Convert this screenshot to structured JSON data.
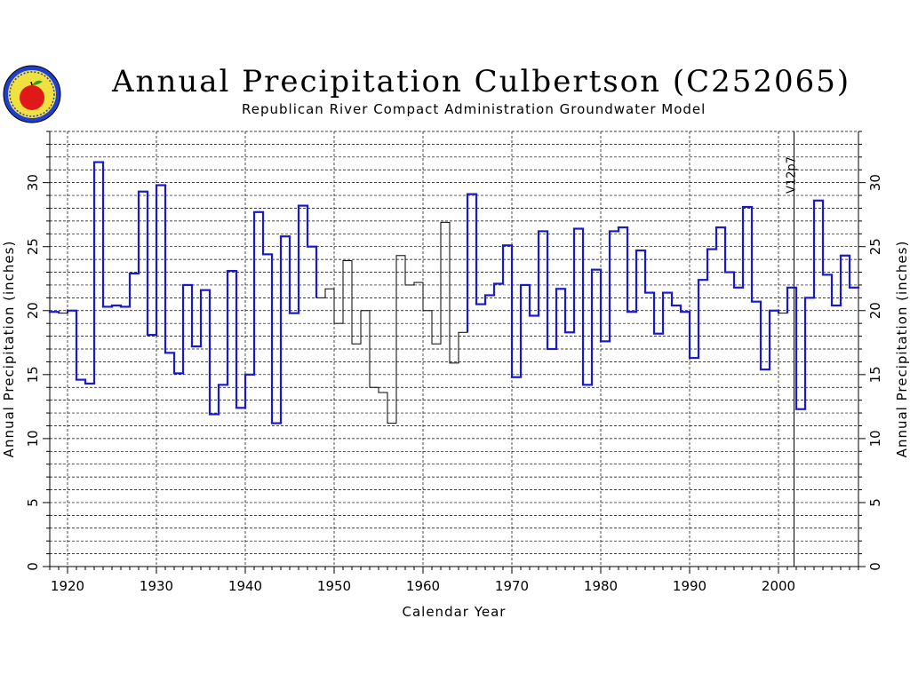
{
  "title": "Annual Precipitation Culbertson (C252065)",
  "subtitle": "Republican River Compact Administration Groundwater Model",
  "logo": {
    "icon": "state-seal-with-apple-icon"
  },
  "colors": {
    "series_before": "#1a1acc",
    "series_after": "#1a1acc",
    "thin_series": "#000000",
    "grid": "#000000"
  },
  "chart_data": {
    "type": "line",
    "step": true,
    "xlabel": "Calendar Year",
    "ylabel_left": "Annual Precipitation (inches)",
    "ylabel_right": "Annual Precipitation (inches)",
    "xlim": [
      1918,
      2009
    ],
    "ylim": [
      0,
      34
    ],
    "x_ticks": [
      1920,
      1930,
      1940,
      1950,
      1960,
      1970,
      1980,
      1990,
      2000
    ],
    "y_ticks": [
      0,
      5,
      10,
      15,
      20,
      25,
      30
    ],
    "grid": {
      "x_dashed_every": 10,
      "y_dashed_every": 1
    },
    "marker": {
      "x": 2001,
      "label": "V12p7"
    },
    "years": [
      1918,
      1919,
      1920,
      1921,
      1922,
      1923,
      1924,
      1925,
      1926,
      1927,
      1928,
      1929,
      1930,
      1931,
      1932,
      1933,
      1934,
      1935,
      1936,
      1937,
      1938,
      1939,
      1940,
      1941,
      1942,
      1943,
      1944,
      1945,
      1946,
      1947,
      1948,
      1949,
      1950,
      1951,
      1952,
      1953,
      1954,
      1955,
      1956,
      1957,
      1958,
      1959,
      1960,
      1961,
      1962,
      1963,
      1964,
      1965,
      1966,
      1967,
      1968,
      1969,
      1970,
      1971,
      1972,
      1973,
      1974,
      1975,
      1976,
      1977,
      1978,
      1979,
      1980,
      1981,
      1982,
      1983,
      1984,
      1985,
      1986,
      1987,
      1988,
      1989,
      1990,
      1991,
      1992,
      1993,
      1994,
      1995,
      1996,
      1997,
      1998,
      1999,
      2000,
      2001,
      2002,
      2003,
      2004,
      2005,
      2006,
      2007,
      2008
    ],
    "values": [
      19.9,
      19.8,
      20.0,
      14.6,
      14.3,
      31.6,
      20.3,
      20.4,
      20.3,
      22.9,
      29.3,
      18.1,
      29.8,
      16.7,
      15.1,
      22.0,
      17.2,
      21.6,
      11.9,
      14.2,
      23.1,
      12.4,
      15.0,
      27.7,
      24.4,
      11.2,
      25.8,
      19.8,
      28.2,
      25.0,
      21.0,
      21.7,
      19.0,
      23.9,
      17.4,
      20.0,
      14.0,
      13.6,
      11.2,
      24.3,
      22.0,
      22.2,
      20.0,
      17.4,
      26.9,
      15.9,
      18.3,
      29.1,
      20.5,
      21.2,
      22.1,
      25.1,
      14.8,
      22.0,
      19.6,
      26.2,
      17.0,
      21.7,
      18.3,
      26.4,
      14.2,
      23.2,
      17.6,
      26.2,
      26.5,
      19.9,
      24.7,
      21.4,
      18.2,
      21.4,
      20.4,
      19.9,
      16.3,
      22.4,
      24.8,
      26.5,
      23.0,
      21.8,
      28.1,
      20.7,
      15.4,
      20.0,
      19.8,
      21.8,
      12.3,
      21.0,
      28.6,
      22.8,
      20.4,
      24.3,
      21.8
    ],
    "thin_years": [
      1919,
      1948,
      1949,
      1950,
      1951,
      1952,
      1953,
      1954,
      1955,
      1956,
      1957,
      1958,
      1959,
      1960,
      1961,
      1962,
      1963,
      1964,
      2000
    ],
    "series": [
      {
        "name": "",
        "style": "thick-blue"
      },
      {
        "name": "",
        "style": "thin-black"
      }
    ]
  }
}
